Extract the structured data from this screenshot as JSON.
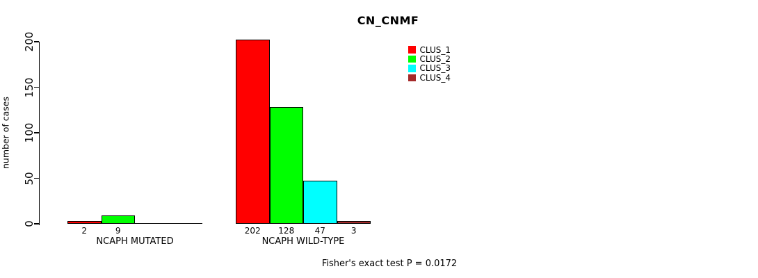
{
  "title": "CN_CNMF",
  "footer": "Fisher's exact test P = 0.0172",
  "legend": {
    "position": "top-right",
    "items": [
      {
        "label": "CLUS_1",
        "color": "#ff0000"
      },
      {
        "label": "CLUS_2",
        "color": "#00ff00"
      },
      {
        "label": "CLUS_3",
        "color": "#00ffff"
      },
      {
        "label": "CLUS_4",
        "color": "#a52a2a"
      }
    ]
  },
  "chart_data": {
    "type": "bar",
    "grouped": true,
    "title": "CN_CNMF",
    "xlabel": "",
    "ylabel": "number of cases",
    "ylim": [
      0,
      200
    ],
    "yticks": [
      0,
      50,
      100,
      150,
      200
    ],
    "grid": false,
    "legend_position": "top-right",
    "categories": [
      "NCAPH MUTATED",
      "NCAPH WILD-TYPE"
    ],
    "series": [
      {
        "name": "CLUS_1",
        "color": "#ff0000",
        "values": [
          2,
          202
        ]
      },
      {
        "name": "CLUS_2",
        "color": "#00ff00",
        "values": [
          9,
          128
        ]
      },
      {
        "name": "CLUS_3",
        "color": "#00ffff",
        "values": [
          0,
          47
        ]
      },
      {
        "name": "CLUS_4",
        "color": "#a52a2a",
        "values": [
          0,
          3
        ]
      }
    ],
    "bar_value_labels": "shown under each bar when value > 0",
    "annotation": "Fisher's exact test P = 0.0172"
  }
}
